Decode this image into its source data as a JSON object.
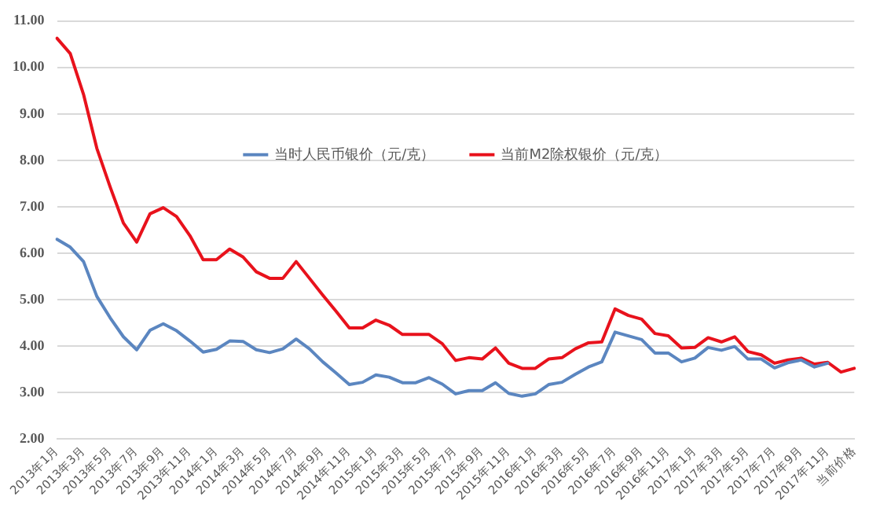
{
  "chart_data": {
    "type": "line",
    "categories": [
      "2013年1月",
      null,
      "2013年3月",
      null,
      "2013年5月",
      null,
      "2013年7月",
      null,
      "2013年9月",
      null,
      "2013年11月",
      null,
      "2014年1月",
      null,
      "2014年3月",
      null,
      "2014年5月",
      null,
      "2014年7月",
      null,
      "2014年9月",
      null,
      "2014年11月",
      null,
      "2015年1月",
      null,
      "2015年3月",
      null,
      "2015年5月",
      null,
      "2015年7月",
      null,
      "2015年9月",
      null,
      "2015年11月",
      null,
      "2016年1月",
      null,
      "2016年3月",
      null,
      "2016年5月",
      null,
      "2016年7月",
      null,
      "2016年9月",
      null,
      "2016年11月",
      null,
      "2017年1月",
      null,
      "2017年3月",
      null,
      "2017年5月",
      null,
      "2017年7月",
      null,
      "2017年9月",
      null,
      "2017年11月",
      null,
      "当前价格"
    ],
    "series": [
      {
        "name": "当时人民币银价（元/克）",
        "color": "#5b86c0",
        "values": [
          6.3,
          6.13,
          5.82,
          5.07,
          4.61,
          4.2,
          3.92,
          4.34,
          4.48,
          4.33,
          4.11,
          3.87,
          3.93,
          4.11,
          4.1,
          3.92,
          3.86,
          3.94,
          4.15,
          3.94,
          3.66,
          3.42,
          3.17,
          3.22,
          3.38,
          3.33,
          3.21,
          3.21,
          3.32,
          3.18,
          2.97,
          3.04,
          3.04,
          3.21,
          2.98,
          2.92,
          2.97,
          3.17,
          3.22,
          3.39,
          3.55,
          3.66,
          4.3,
          4.22,
          4.14,
          3.85,
          3.85,
          3.66,
          3.74,
          3.97,
          3.91,
          3.99,
          3.72,
          3.72,
          3.53,
          3.64,
          3.7,
          3.55,
          3.63,
          null,
          null
        ]
      },
      {
        "name": "当前M2除权银价（元/克）",
        "color": "#e8121c",
        "values": [
          10.63,
          10.3,
          9.42,
          8.26,
          7.43,
          6.65,
          6.24,
          6.85,
          6.98,
          6.79,
          6.38,
          5.86,
          5.86,
          6.09,
          5.92,
          5.6,
          5.46,
          5.46,
          5.82,
          5.46,
          5.1,
          4.75,
          4.39,
          4.39,
          4.56,
          4.45,
          4.25,
          4.25,
          4.25,
          4.05,
          3.69,
          3.75,
          3.72,
          3.96,
          3.63,
          3.52,
          3.52,
          3.72,
          3.75,
          3.94,
          4.07,
          4.09,
          4.8,
          4.66,
          4.58,
          4.27,
          4.22,
          3.96,
          3.97,
          4.18,
          4.09,
          4.2,
          3.88,
          3.81,
          3.63,
          3.7,
          3.74,
          3.61,
          3.65,
          3.44,
          3.52
        ]
      }
    ],
    "ylim": [
      2,
      11
    ],
    "yticks": [
      {
        "value": 2,
        "label": "2.00"
      },
      {
        "value": 3,
        "label": "3.00"
      },
      {
        "value": 4,
        "label": "4.00"
      },
      {
        "value": 5,
        "label": "5.00"
      },
      {
        "value": 6,
        "label": "6.00"
      },
      {
        "value": 7,
        "label": "7.00"
      },
      {
        "value": 8,
        "label": "8.00"
      },
      {
        "value": 9,
        "label": "9.00"
      },
      {
        "value": 10,
        "label": "10.00"
      },
      {
        "value": 11,
        "label": "11.00"
      }
    ],
    "grid": "y",
    "legend": "top",
    "marker": "none",
    "line_style": "solid"
  }
}
